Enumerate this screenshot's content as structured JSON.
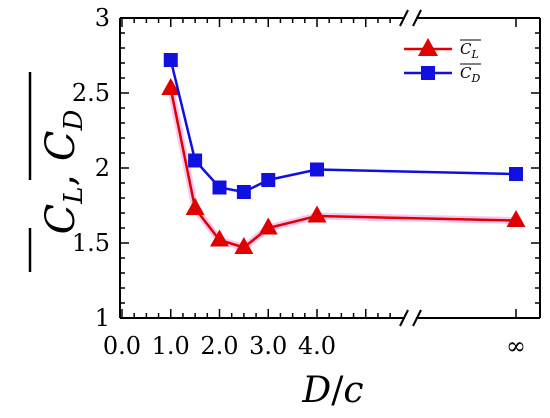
{
  "chart_data": {
    "type": "line",
    "xlabel": "D/c",
    "ylabel": "C̄_L, C̄_D",
    "ylim": [
      1,
      3
    ],
    "yticks": [
      "1",
      "1.5",
      "2",
      "2.5",
      "3"
    ],
    "xticks": [
      "0.0",
      "1.0",
      "2.0",
      "3.0",
      "4.0",
      "∞"
    ],
    "axis_break": "between 4.0 and ∞",
    "legend_placement": "top-right",
    "grid": false,
    "series": [
      {
        "name": "C̄_L",
        "marker": "triangle",
        "color": "#e00000",
        "x": [
          "1.0",
          "1.5",
          "2.0",
          "2.5",
          "3.0",
          "4.0",
          "∞"
        ],
        "y": [
          2.53,
          1.73,
          1.52,
          1.47,
          1.6,
          1.68,
          1.65
        ]
      },
      {
        "name": "C̄_D",
        "marker": "square",
        "color": "#1010e0",
        "x": [
          "1.0",
          "1.5",
          "2.0",
          "2.5",
          "3.0",
          "4.0",
          "∞"
        ],
        "y": [
          2.72,
          2.05,
          1.87,
          1.84,
          1.92,
          1.99,
          1.96
        ]
      }
    ]
  }
}
